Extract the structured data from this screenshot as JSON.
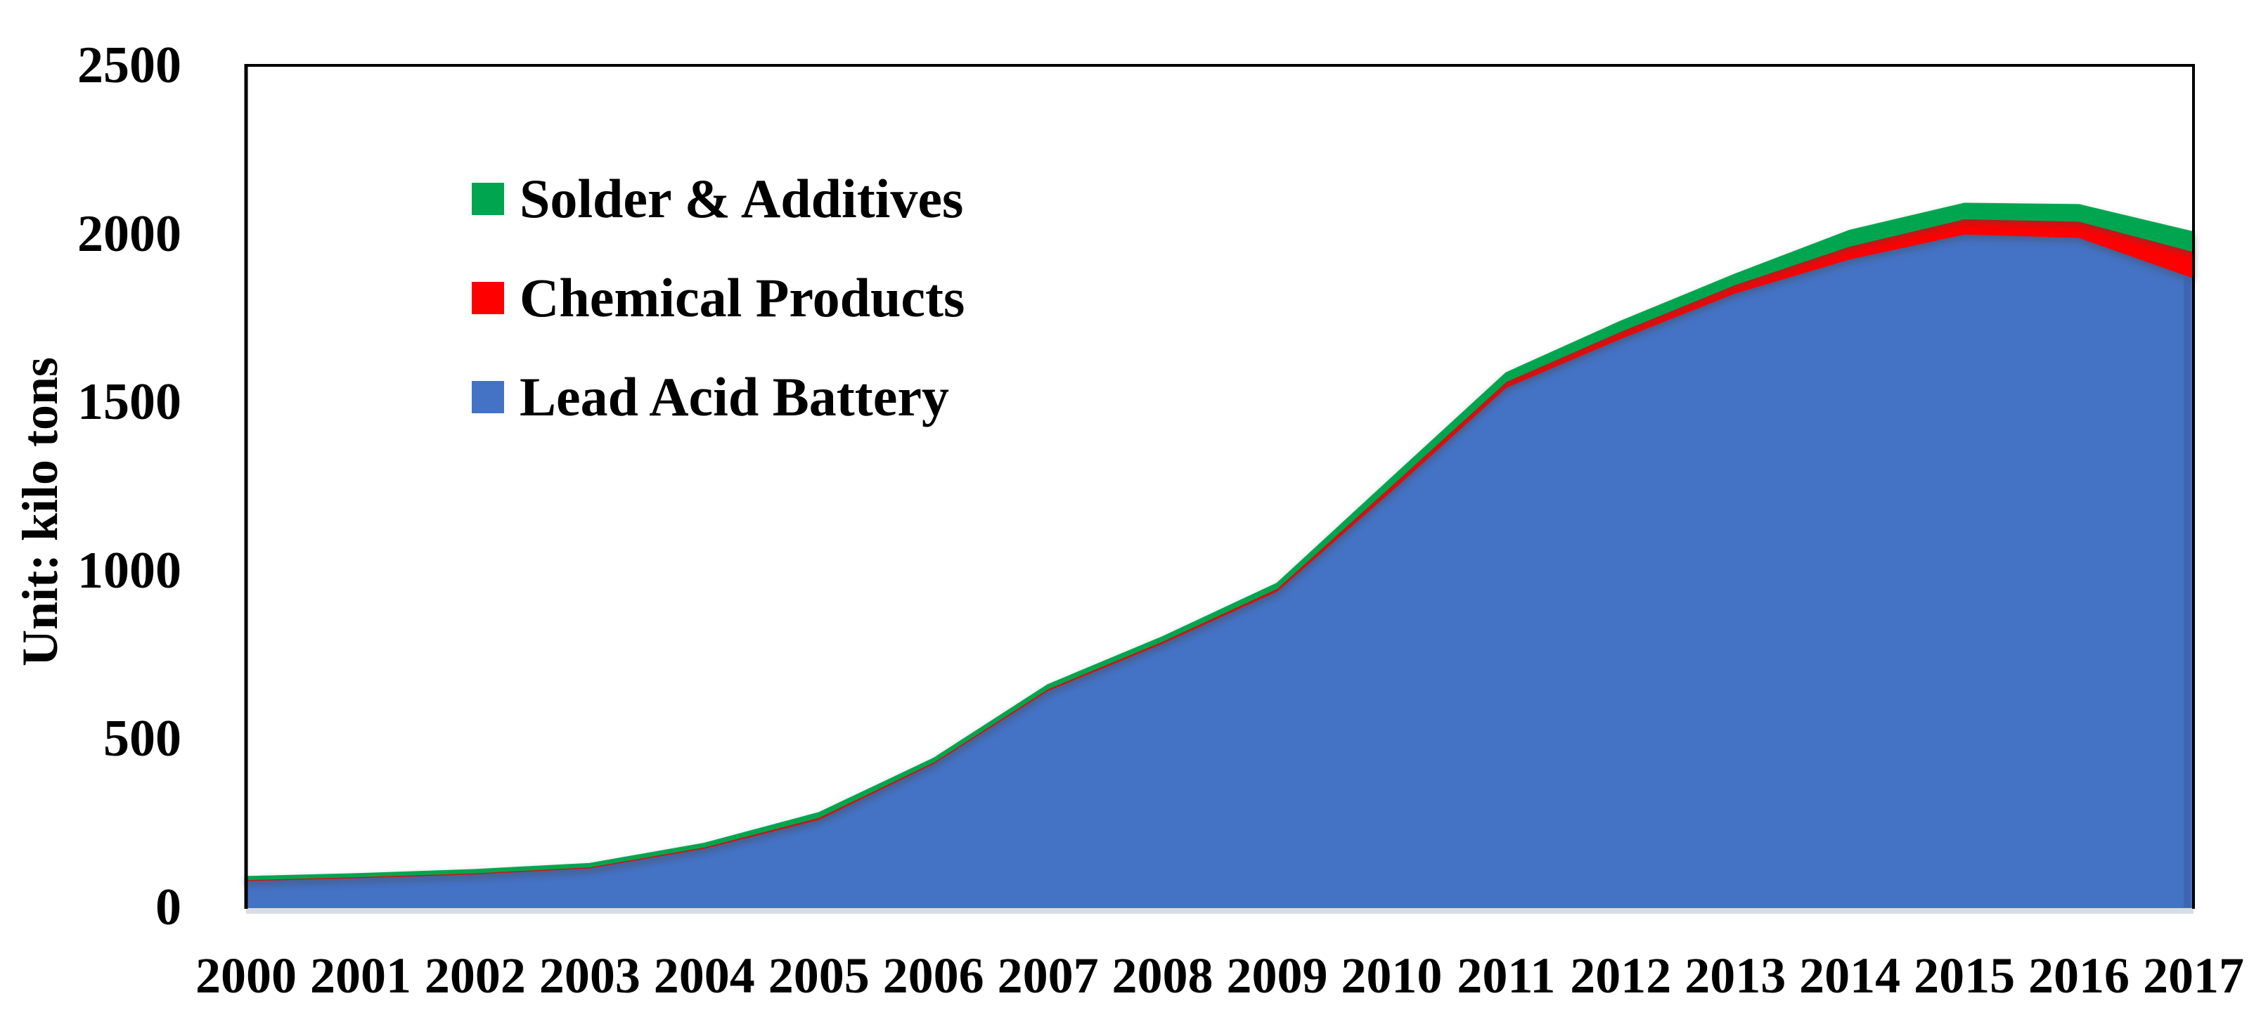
{
  "chart_data": {
    "type": "area",
    "stacked": true,
    "title": "",
    "ylabel": "Unit: kilo tons",
    "xlabel": "",
    "grid": false,
    "legend_position": "inside-top-left",
    "categories": [
      "2000",
      "2001",
      "2002",
      "2003",
      "2004",
      "2005",
      "2006",
      "2007",
      "2008",
      "2009",
      "2010",
      "2011",
      "2012",
      "2013",
      "2014",
      "2015",
      "2016",
      "2017"
    ],
    "series": [
      {
        "name": "Lead Acid Battery",
        "color": "#4472C4",
        "values": [
          80,
          89,
          100,
          118,
          176,
          262,
          428,
          645,
          785,
          940,
          1238,
          1545,
          1690,
          1825,
          1926,
          2000,
          1990,
          1870
        ]
      },
      {
        "name": "Chemical Products",
        "color": "#FE0000",
        "values": [
          3,
          3,
          3,
          3,
          4,
          6,
          4,
          5,
          6,
          8,
          16,
          17,
          21,
          25,
          38,
          45,
          48,
          78
        ]
      },
      {
        "name": "Solder & Additives",
        "color": "#00A64F",
        "values": [
          8,
          8,
          9,
          9,
          10,
          13,
          10,
          11,
          12,
          14,
          21,
          25,
          29,
          30,
          46,
          45,
          48,
          57
        ]
      }
    ],
    "legend": [
      {
        "label": "Solder & Additives",
        "color": "#00A64F"
      },
      {
        "label": "Chemical Products",
        "color": "#FE0000"
      },
      {
        "label": "Lead Acid Battery",
        "color": "#4472C4"
      }
    ],
    "y_axis": {
      "min": 0,
      "max": 2500,
      "step": 500,
      "tick_labels": [
        "0",
        "500",
        "1000",
        "1500",
        "2000",
        "2500"
      ]
    },
    "colors": {
      "axis_line": "#000000",
      "baseline_strip": "#D9DCE4",
      "text": "#000000",
      "background": "#FFFFFF",
      "right_edge_shade": "#3A5BA5"
    }
  }
}
